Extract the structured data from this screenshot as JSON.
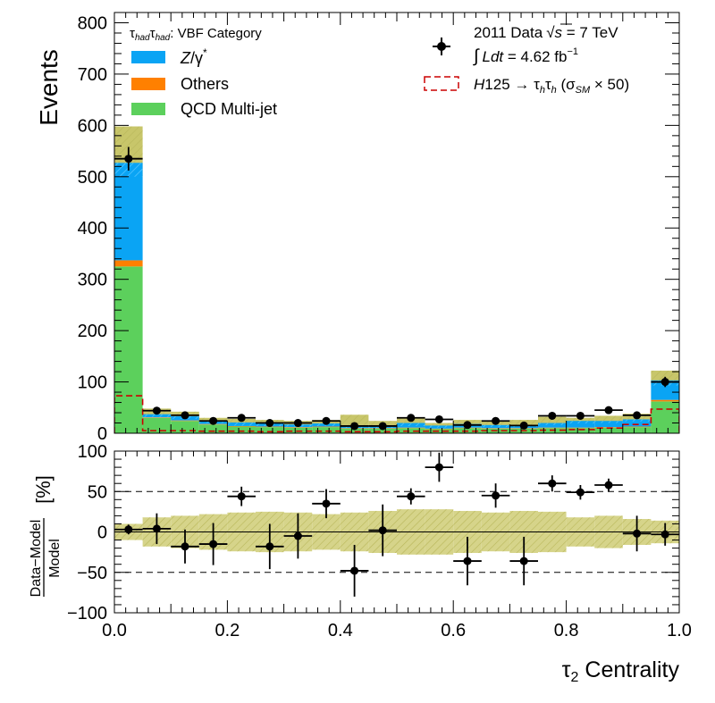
{
  "chart_data": [
    {
      "type": "bar",
      "panel": "main",
      "stacked": true,
      "ylabel": "Events",
      "xlim": [
        0.0,
        1.0
      ],
      "ylim": [
        0,
        820
      ],
      "yticks": [
        0,
        100,
        200,
        300,
        400,
        500,
        600,
        700,
        800
      ],
      "yticks_labels": [
        "0",
        "100",
        "200",
        "300",
        "400",
        "500",
        "600",
        "700",
        "800"
      ],
      "bin_edges": [
        0.0,
        0.05,
        0.1,
        0.15,
        0.2,
        0.25,
        0.3,
        0.35,
        0.4,
        0.45,
        0.5,
        0.55,
        0.6,
        0.65,
        0.7,
        0.75,
        0.8,
        0.85,
        0.9,
        0.95,
        1.0
      ],
      "series": [
        {
          "name": "QCD Multi-jet",
          "color": "#5cd05c",
          "values": [
            325,
            30,
            24,
            17,
            13,
            12,
            11,
            12,
            9,
            9,
            10,
            8,
            10,
            9,
            9,
            10,
            10,
            11,
            12,
            62
          ]
        },
        {
          "name": "Others",
          "color": "#ff8000",
          "values": [
            12,
            1,
            1,
            1,
            1,
            1,
            1,
            1,
            1,
            1,
            1,
            1,
            1,
            1,
            1,
            1,
            1,
            1,
            1,
            3
          ]
        },
        {
          "name": "Z/γ*",
          "color": "#0aa4f4",
          "values": [
            190,
            6,
            8,
            7,
            7,
            6,
            5,
            6,
            4,
            4,
            9,
            6,
            7,
            6,
            6,
            9,
            13,
            12,
            14,
            38
          ]
        }
      ],
      "uncertainty_band": {
        "color": "#c8c66a",
        "low": [
          500,
          32,
          28,
          20,
          15,
          14,
          13,
          14,
          10,
          10,
          14,
          11,
          14,
          12,
          12,
          16,
          19,
          20,
          23,
          93
        ],
        "high": [
          598,
          48,
          42,
          30,
          28,
          26,
          24,
          26,
          36,
          24,
          30,
          20,
          26,
          24,
          26,
          32,
          30,
          34,
          38,
          122
        ]
      },
      "signal": {
        "name": "H125 → τhτh (σSM × 50)",
        "color": "#cc0000",
        "style": "dashed",
        "values": [
          73,
          5,
          5,
          4,
          4,
          3,
          4,
          4,
          3,
          3,
          4,
          4,
          4,
          5,
          5,
          6,
          7,
          10,
          17,
          47
        ]
      },
      "data": {
        "name": "2011 Data √s = 7 TeV",
        "color": "#000000",
        "values": [
          535,
          44,
          35,
          24,
          30,
          20,
          20,
          24,
          14,
          14,
          30,
          27,
          16,
          24,
          15,
          34,
          34,
          45,
          35,
          100
        ],
        "errors": [
          23,
          7,
          6,
          5,
          5,
          4.5,
          4.5,
          5,
          4,
          4,
          5.5,
          5,
          4,
          5,
          4,
          6,
          6,
          6.5,
          6,
          10
        ]
      }
    },
    {
      "type": "scatter",
      "panel": "ratio",
      "ylabel": "Data−Model / Model [%]",
      "xlabel": "τ2 Centrality",
      "xlim": [
        0.0,
        1.0
      ],
      "ylim": [
        -100,
        100
      ],
      "yticks": [
        -100,
        -50,
        0,
        50,
        100
      ],
      "yticks_labels": [
        "−100",
        "−50",
        "0",
        "50",
        "100"
      ],
      "xticks": [
        0.0,
        0.2,
        0.4,
        0.6,
        0.8,
        1.0
      ],
      "xticks_labels": [
        "0.0",
        "0.2",
        "0.4",
        "0.6",
        "0.8",
        "1.0"
      ],
      "reference_lines": [
        50,
        0,
        -50
      ],
      "x": [
        0.025,
        0.075,
        0.125,
        0.175,
        0.225,
        0.275,
        0.325,
        0.375,
        0.425,
        0.475,
        0.525,
        0.575,
        0.625,
        0.675,
        0.725,
        0.775,
        0.825,
        0.875,
        0.925,
        0.975
      ],
      "values": [
        3,
        4,
        -18,
        -15,
        44,
        -18,
        -5,
        35,
        -48,
        2,
        44,
        80,
        -36,
        45,
        -36,
        60,
        49,
        58,
        -2,
        -3
      ],
      "errors": [
        6,
        19,
        21,
        26,
        12,
        28,
        28,
        18,
        32,
        32,
        10,
        18,
        30,
        15,
        30,
        10,
        9,
        8,
        22,
        14
      ],
      "band_halfwidth": [
        10,
        18,
        20,
        22,
        24,
        25,
        24,
        22,
        24,
        26,
        28,
        28,
        26,
        24,
        26,
        25,
        18,
        20,
        16,
        14
      ]
    }
  ],
  "labels": {
    "ylabel_main": "Events",
    "ratio_numerator": "Data−Model",
    "ratio_denominator": "Model",
    "ratio_unit": "[%]",
    "xlabel_symbol": "τ",
    "xlabel_sub": "2",
    "xlabel_rest": " Centrality"
  },
  "legend_left": {
    "category_tau1": "τ",
    "category_sub1": "had",
    "category_tau2": "τ",
    "category_sub2": "had",
    "category_rest": ": VBF Category",
    "z_main": "Z",
    "z_sep": "/",
    "z_gamma": "γ",
    "z_star": "*",
    "others": "Others",
    "qcd": "QCD Multi-jet"
  },
  "legend_right": {
    "data_text": "2011 Data",
    "data_sqrt": "√",
    "data_s": "s",
    "data_energy": " = 7 TeV",
    "lumi_int": "∫",
    "lumi_ldt": "Ldt",
    "lumi_value": " = 4.62 fb",
    "lumi_exp": "−1",
    "signal_h": "H",
    "signal_mass": "125 → τ",
    "signal_sub1": "h",
    "signal_tau2": "τ",
    "signal_sub2": "h",
    "signal_open": " (σ",
    "signal_sm": "SM",
    "signal_close": " × 50)"
  }
}
